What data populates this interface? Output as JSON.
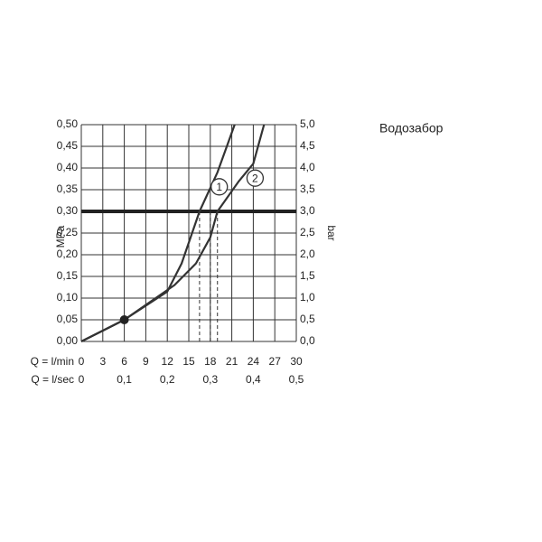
{
  "chart_data": {
    "type": "line",
    "title": "Водозабор",
    "y_label": "MPa",
    "y2_label": "bar",
    "x_row_label": "Q = l/min",
    "x2_row_label": "Q = l/sec",
    "xlim": [
      0,
      30
    ],
    "xticks": [
      0,
      3,
      6,
      9,
      12,
      15,
      18,
      21,
      24,
      27,
      30
    ],
    "x2lim": [
      0,
      0.5
    ],
    "x2ticks": [
      0,
      {
        "value": 0.1,
        "label": "0,1"
      },
      {
        "value": 0.2,
        "label": "0,2"
      },
      {
        "value": 0.3,
        "label": "0,3"
      },
      {
        "value": 0.4,
        "label": "0,4"
      },
      {
        "value": 0.5,
        "label": "0,5"
      }
    ],
    "ylim": [
      0,
      0.5
    ],
    "yticks": [
      {
        "value": 0,
        "label": "0,00"
      },
      {
        "value": 0.05,
        "label": "0,05"
      },
      {
        "value": 0.1,
        "label": "0,10"
      },
      {
        "value": 0.15,
        "label": "0,15"
      },
      {
        "value": 0.2,
        "label": "0,20"
      },
      {
        "value": 0.25,
        "label": "0,25"
      },
      {
        "value": 0.3,
        "label": "0,30"
      },
      {
        "value": 0.35,
        "label": "0,35"
      },
      {
        "value": 0.4,
        "label": "0,40"
      },
      {
        "value": 0.45,
        "label": "0,45"
      },
      {
        "value": 0.5,
        "label": "0,50"
      }
    ],
    "y2lim": [
      0,
      5
    ],
    "y2ticks": [
      {
        "value": 0,
        "label": "0,0"
      },
      {
        "value": 0.5,
        "label": "0,5"
      },
      {
        "value": 1,
        "label": "1,0"
      },
      {
        "value": 1.5,
        "label": "1,5"
      },
      {
        "value": 2,
        "label": "2,0"
      },
      {
        "value": 2.5,
        "label": "2,5"
      },
      {
        "value": 3,
        "label": "3,0"
      },
      {
        "value": 3.5,
        "label": "3,5"
      },
      {
        "value": 4,
        "label": "4,0"
      },
      {
        "value": 4.5,
        "label": "4,5"
      },
      {
        "value": 5,
        "label": "5,0"
      }
    ],
    "grid": true,
    "threshold": 0.3,
    "reference_x": [
      16.5,
      18,
      19
    ],
    "marker": {
      "x": 6,
      "y": 0.05
    },
    "series": [
      {
        "name": "1",
        "color": "#333333",
        "x": [
          0,
          6,
          12,
          14,
          16.5,
          19,
          21.4
        ],
        "values": [
          0,
          0.05,
          0.115,
          0.18,
          0.3,
          0.39,
          0.5
        ]
      },
      {
        "name": "2",
        "color": "#333333",
        "x": [
          0,
          6,
          13,
          16,
          18,
          19,
          22,
          24,
          25.5
        ],
        "values": [
          0,
          0.05,
          0.13,
          0.18,
          0.24,
          0.3,
          0.37,
          0.41,
          0.5
        ]
      }
    ]
  }
}
